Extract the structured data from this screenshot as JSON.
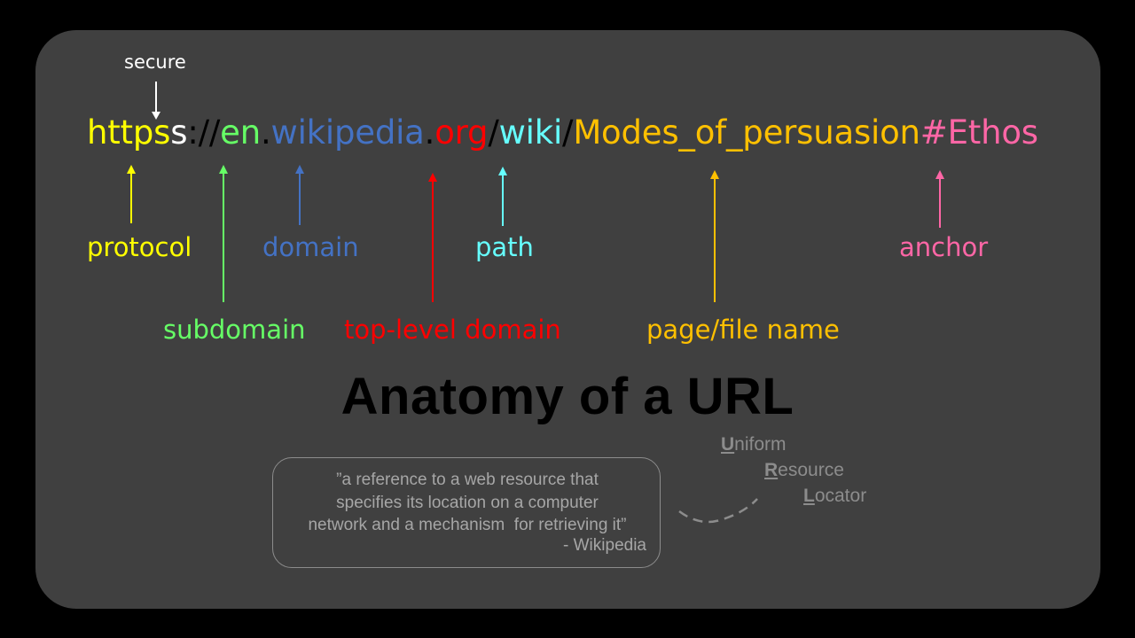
{
  "secure_label": "secure",
  "url_parts": [
    {
      "text": "https",
      "color": "#ffff00"
    },
    {
      "text": "s",
      "color": "#ffffff"
    },
    {
      "text": "://",
      "color": "#000000"
    },
    {
      "text": "en",
      "color": "#66ff66"
    },
    {
      "text": ".",
      "color": "#000000"
    },
    {
      "text": "wikipedia",
      "color": "#4472c4"
    },
    {
      "text": ".",
      "color": "#000000"
    },
    {
      "text": "org",
      "color": "#ff0000"
    },
    {
      "text": "/",
      "color": "#000000"
    },
    {
      "text": "wiki",
      "color": "#66ffff"
    },
    {
      "text": "/",
      "color": "#000000"
    },
    {
      "text": "Modes_of_persuasion",
      "color": "#ffc000"
    },
    {
      "text": "#Ethos",
      "color": "#ff66a6"
    }
  ],
  "labels": {
    "protocol": {
      "text": "protocol",
      "color": "#ffff00"
    },
    "subdomain": {
      "text": "subdomain",
      "color": "#66ff66"
    },
    "domain": {
      "text": "domain",
      "color": "#4472c4"
    },
    "tld": {
      "text": "top-level domain",
      "color": "#ff0000"
    },
    "path": {
      "text": "path",
      "color": "#66ffff"
    },
    "page": {
      "text": "page/file name",
      "color": "#ffc000"
    },
    "anchor": {
      "text": "anchor",
      "color": "#ff66a6"
    }
  },
  "title": "Anatomy of a URL",
  "quote": {
    "lines": [
      "”a reference to a web resource that",
      "specifies its location on a computer",
      "network and a mechanism  for retrieving it”"
    ],
    "source": "- Wikipedia"
  },
  "acronym": [
    {
      "initial": "U",
      "rest": "niform"
    },
    {
      "initial": "R",
      "rest": "esource"
    },
    {
      "initial": "L",
      "rest": "ocator"
    }
  ],
  "colors": {
    "background": "#000000",
    "card": "#404040",
    "quote_text": "#a6a6a6",
    "acronym": "#8c8c8c"
  }
}
